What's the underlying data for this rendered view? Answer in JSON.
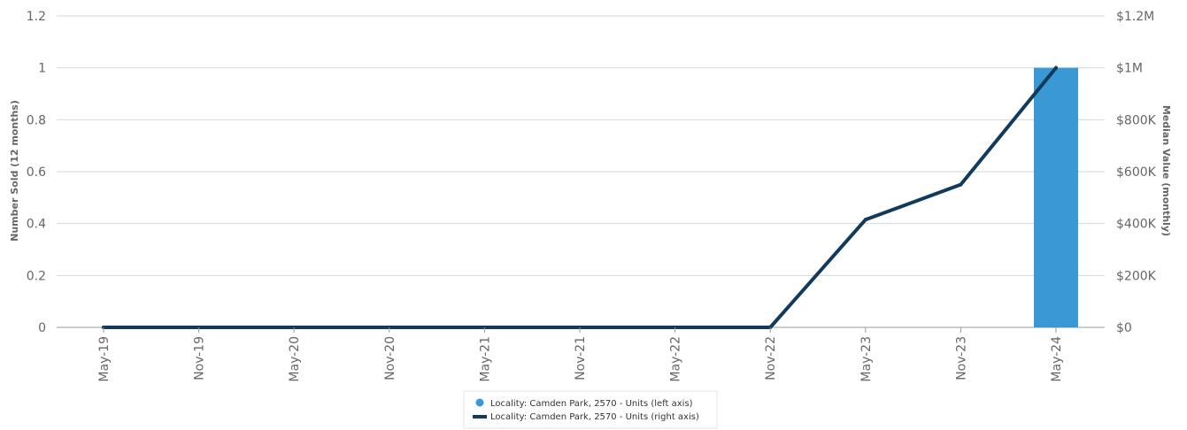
{
  "chart_data": {
    "type": "bar",
    "categories": [
      "May-19",
      "Nov-19",
      "May-20",
      "Nov-20",
      "May-21",
      "Nov-21",
      "May-22",
      "Nov-22",
      "May-23",
      "Nov-23",
      "May-24"
    ],
    "series": [
      {
        "name": "Locality: Camden Park, 2570 - Units (left axis)",
        "type": "bar",
        "axis": "left",
        "color": "#3a98d4",
        "values": [
          0,
          0,
          0,
          0,
          0,
          0,
          0,
          0,
          0,
          0,
          1
        ]
      },
      {
        "name": "Locality: Camden Park, 2570 - Units (right axis)",
        "type": "line",
        "axis": "right",
        "color": "#123a5c",
        "values": [
          0,
          0,
          0,
          0,
          0,
          0,
          0,
          0,
          415000,
          550000,
          1000000
        ]
      }
    ],
    "y_left": {
      "label": "Number Sold (12 months)",
      "lim": [
        0,
        1.2
      ],
      "ticks": [
        "0",
        "0.2",
        "0.4",
        "0.6",
        "0.8",
        "1",
        "1.2"
      ]
    },
    "y_right": {
      "label": "Median Value (monthly)",
      "lim": [
        0,
        1200000
      ],
      "ticks": [
        "$0",
        "$200K",
        "$400K",
        "$600K",
        "$800K",
        "$1M",
        "$1.2M"
      ]
    },
    "grid": true,
    "legend_position": "bottom"
  }
}
